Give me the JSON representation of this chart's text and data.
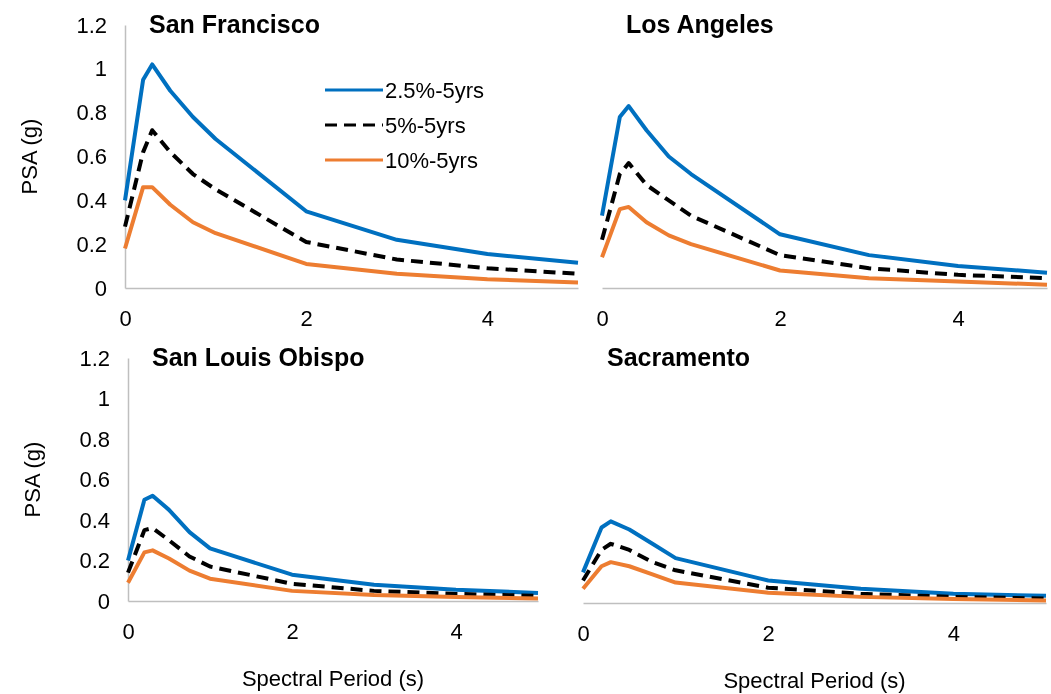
{
  "chart_data": [
    {
      "type": "line",
      "title": "San Francisco",
      "ylabel": "PSA (g)",
      "x": [
        0,
        0.2,
        0.3,
        0.5,
        0.75,
        1,
        2,
        3,
        4,
        5
      ],
      "xlim": [
        0,
        5
      ],
      "xticks": [
        0,
        2,
        4
      ],
      "ylim": [
        0,
        1.2
      ],
      "yticks": [
        0,
        0.2,
        0.4,
        0.6,
        0.8,
        1,
        1.2
      ],
      "grid": false,
      "legend": "top right",
      "series": [
        {
          "name": "2.5%-5yrs",
          "color": "#0070c0",
          "line_style": "solid",
          "values": [
            0.4,
            0.95,
            1.02,
            0.9,
            0.78,
            0.68,
            0.35,
            0.22,
            0.155,
            0.115
          ]
        },
        {
          "name": "5%-5yrs",
          "color": "#000000",
          "line_style": "dashed",
          "values": [
            0.28,
            0.62,
            0.72,
            0.62,
            0.52,
            0.45,
            0.21,
            0.13,
            0.09,
            0.065
          ]
        },
        {
          "name": "10%-5yrs",
          "color": "#ed7d31",
          "line_style": "solid",
          "values": [
            0.18,
            0.46,
            0.46,
            0.38,
            0.3,
            0.25,
            0.11,
            0.065,
            0.04,
            0.025
          ]
        }
      ]
    },
    {
      "type": "line",
      "title": "Los Angeles",
      "x": [
        0,
        0.2,
        0.3,
        0.5,
        0.75,
        1,
        2,
        3,
        4,
        5
      ],
      "xlim": [
        0,
        5
      ],
      "xticks": [
        0,
        2,
        4
      ],
      "ylim": [
        0,
        1.2
      ],
      "tick_labels": "x",
      "grid": false,
      "series": [
        {
          "color": "#0070c0",
          "line_style": "solid",
          "values": [
            0.33,
            0.78,
            0.83,
            0.72,
            0.6,
            0.52,
            0.245,
            0.15,
            0.1,
            0.07
          ]
        },
        {
          "color": "#000000",
          "line_style": "dashed",
          "values": [
            0.22,
            0.52,
            0.57,
            0.47,
            0.4,
            0.33,
            0.15,
            0.09,
            0.06,
            0.045
          ]
        },
        {
          "color": "#ed7d31",
          "line_style": "solid",
          "values": [
            0.14,
            0.36,
            0.37,
            0.3,
            0.24,
            0.2,
            0.08,
            0.045,
            0.03,
            0.015
          ]
        }
      ]
    },
    {
      "type": "line",
      "title": "San Louis Obispo",
      "xlabel": "Spectral Period (s)",
      "ylabel": "PSA (g)",
      "x": [
        0,
        0.2,
        0.3,
        0.5,
        0.75,
        1,
        2,
        3,
        4,
        5
      ],
      "xlim": [
        0,
        5
      ],
      "xticks": [
        0,
        2,
        4
      ],
      "ylim": [
        0,
        1.2
      ],
      "yticks": [
        0,
        0.2,
        0.4,
        0.6,
        0.8,
        1,
        1.2
      ],
      "grid": false,
      "series": [
        {
          "color": "#0070c0",
          "line_style": "solid",
          "values": [
            0.2,
            0.5,
            0.52,
            0.45,
            0.34,
            0.26,
            0.13,
            0.08,
            0.055,
            0.04
          ]
        },
        {
          "color": "#000000",
          "line_style": "dashed",
          "values": [
            0.14,
            0.35,
            0.36,
            0.3,
            0.22,
            0.17,
            0.085,
            0.05,
            0.035,
            0.025
          ]
        },
        {
          "color": "#ed7d31",
          "line_style": "solid",
          "values": [
            0.09,
            0.24,
            0.25,
            0.21,
            0.15,
            0.11,
            0.05,
            0.03,
            0.02,
            0.012
          ]
        }
      ]
    },
    {
      "type": "line",
      "title": "Sacramento",
      "xlabel": "Spectral Period (s)",
      "x": [
        0,
        0.2,
        0.3,
        0.5,
        0.75,
        1,
        2,
        3,
        4,
        5
      ],
      "xlim": [
        0,
        5
      ],
      "xticks": [
        0,
        2,
        4
      ],
      "ylim": [
        0,
        1.2
      ],
      "tick_labels": "x",
      "grid": false,
      "series": [
        {
          "color": "#0070c0",
          "line_style": "solid",
          "values": [
            0.15,
            0.37,
            0.4,
            0.36,
            0.29,
            0.22,
            0.11,
            0.07,
            0.045,
            0.035
          ]
        },
        {
          "color": "#000000",
          "line_style": "dashed",
          "values": [
            0.11,
            0.26,
            0.29,
            0.26,
            0.2,
            0.16,
            0.075,
            0.045,
            0.03,
            0.022
          ]
        },
        {
          "color": "#ed7d31",
          "line_style": "solid",
          "values": [
            0.07,
            0.18,
            0.2,
            0.18,
            0.14,
            0.1,
            0.05,
            0.03,
            0.02,
            0.012
          ]
        }
      ]
    }
  ]
}
